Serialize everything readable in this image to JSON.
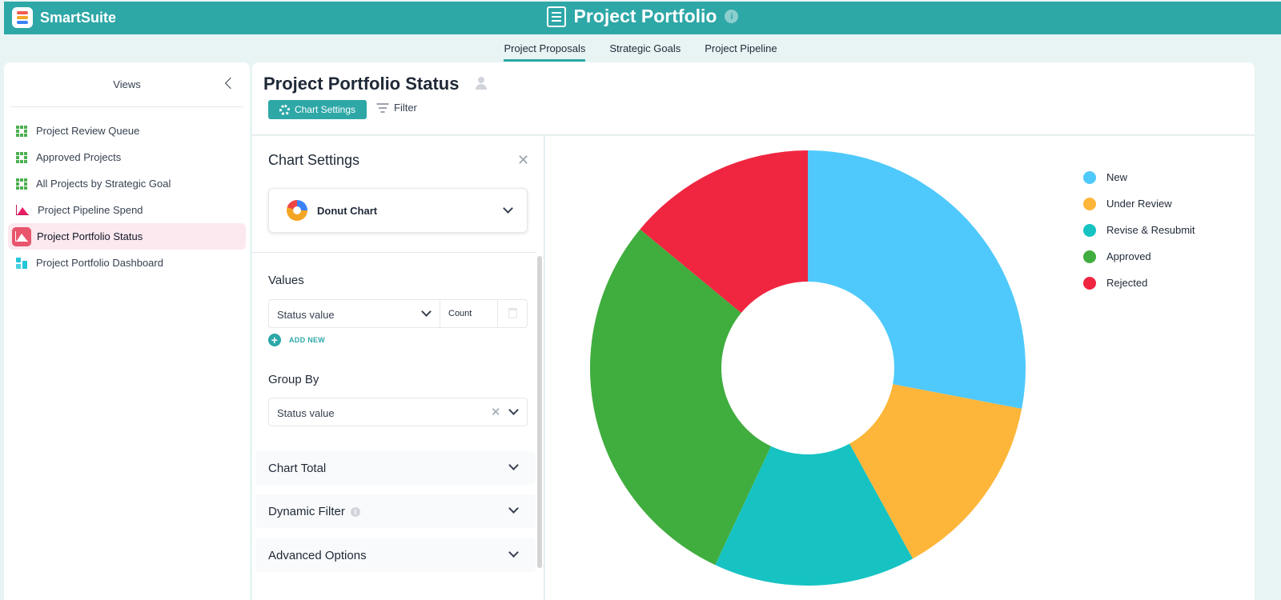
{
  "app": {
    "brand": "SmartSuite",
    "title": "Project Portfolio"
  },
  "tabs": [
    {
      "label": "Project Proposals",
      "active": true
    },
    {
      "label": "Strategic Goals",
      "active": false
    },
    {
      "label": "Project Pipeline",
      "active": false
    }
  ],
  "sidebar": {
    "heading": "Views",
    "items": [
      {
        "label": "Project Review Queue",
        "icon": "grid-view-icon"
      },
      {
        "label": "Approved Projects",
        "icon": "grid-view-icon"
      },
      {
        "label": "All Projects by Strategic Goal",
        "icon": "grid-view-icon"
      },
      {
        "label": "Project Pipeline Spend",
        "icon": "area-chart-icon"
      },
      {
        "label": "Project Portfolio Status",
        "icon": "area-chart-icon",
        "active": true
      },
      {
        "label": "Project Portfolio Dashboard",
        "icon": "dashboard-icon"
      }
    ]
  },
  "view": {
    "title": "Project Portfolio Status",
    "chart_settings_label": "Chart Settings",
    "filter_label": "Filter"
  },
  "settings": {
    "title": "Chart Settings",
    "chart_type": "Donut Chart",
    "values_label": "Values",
    "value_field": "Status value",
    "aggregate": "Count",
    "add_new": "ADD NEW",
    "group_by_label": "Group By",
    "group_by_field": "Status value",
    "sections": [
      "Chart Total",
      "Dynamic Filter",
      "Advanced Options"
    ]
  },
  "colors": {
    "accent": "#2ea7a7",
    "active_view_bg": "#fce8ef"
  },
  "chart_data": {
    "type": "pie",
    "variant": "donut",
    "categories": [
      "New",
      "Under Review",
      "Revise & Resubmit",
      "Approved",
      "Rejected"
    ],
    "values": [
      28,
      14,
      15,
      29,
      14
    ],
    "colors": [
      "#4fc9fb",
      "#fdb63a",
      "#16c3c2",
      "#40ad3f",
      "#f02641"
    ],
    "legend": "top-right"
  }
}
